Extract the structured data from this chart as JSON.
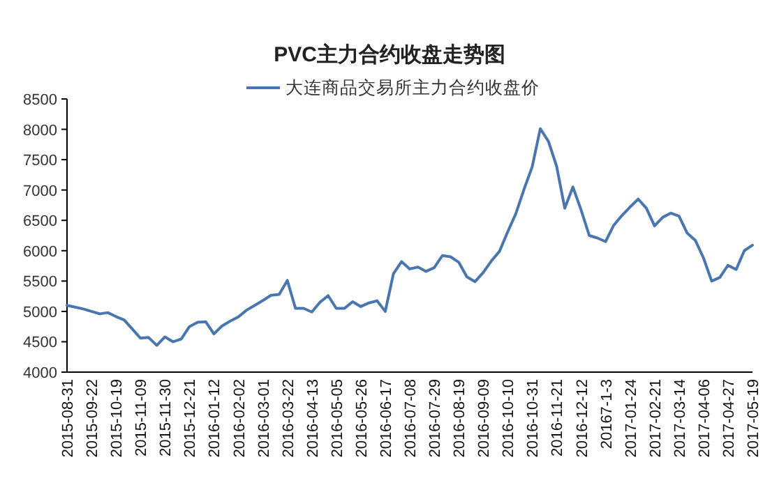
{
  "chart_data": {
    "type": "line",
    "title": "PVC主力合约收盘走势图",
    "categories": [
      "2015-08-31",
      null,
      null,
      "2015-09-22",
      null,
      null,
      "2015-10-19",
      null,
      null,
      "2015-11-09",
      null,
      null,
      "2015-11-30",
      null,
      null,
      "2015-12-21",
      null,
      null,
      "2016-01-12",
      null,
      null,
      "2016-02-02",
      null,
      null,
      "2016-03-01",
      null,
      null,
      "2016-03-22",
      null,
      null,
      "2016-04-13",
      null,
      null,
      "2016-05-05",
      null,
      null,
      "2016-05-26",
      null,
      null,
      "2016-06-17",
      null,
      null,
      "2016-07-08",
      null,
      null,
      "2016-07-29",
      null,
      null,
      "2016-08-19",
      null,
      null,
      "2016-09-09",
      null,
      null,
      "2016-10-10",
      null,
      null,
      "2016-10-31",
      null,
      null,
      "2016-11-21",
      null,
      null,
      "2016-12-12",
      null,
      null,
      "20167-1-3",
      null,
      null,
      "2017-01-24",
      null,
      null,
      "2017-02-21",
      null,
      null,
      "2017-03-14",
      null,
      null,
      "2017-04-06",
      null,
      null,
      "2017-04-27",
      null,
      null,
      "2017-05-19"
    ],
    "series": [
      {
        "name": "大连商品交易所主力合约收盘价",
        "color": "#4a76b0",
        "values": [
          5100,
          5070,
          5040,
          5000,
          4960,
          4980,
          4915,
          4860,
          4710,
          4560,
          4570,
          4440,
          4580,
          4500,
          4545,
          4750,
          4820,
          4830,
          4630,
          4760,
          4840,
          4910,
          5020,
          5100,
          5180,
          5265,
          5280,
          5510,
          5050,
          5050,
          4990,
          5150,
          5260,
          5050,
          5050,
          5160,
          5080,
          5140,
          5175,
          5000,
          5620,
          5820,
          5700,
          5730,
          5660,
          5720,
          5920,
          5900,
          5810,
          5570,
          5490,
          5640,
          5830,
          5990,
          6310,
          6610,
          7010,
          7380,
          8010,
          7800,
          7390,
          6700,
          7050,
          6670,
          6250,
          6210,
          6150,
          6420,
          6580,
          6720,
          6850,
          6700,
          6410,
          6550,
          6620,
          6570,
          6290,
          6170,
          5880,
          5500,
          5560,
          5760,
          5690,
          6000,
          6090
        ]
      }
    ],
    "ylim": [
      4000,
      8500
    ],
    "yticks": [
      4000,
      4500,
      5000,
      5500,
      6000,
      6500,
      7000,
      7500,
      8000,
      8500
    ],
    "legend": "top",
    "line_style": "solid",
    "marker": "none"
  }
}
